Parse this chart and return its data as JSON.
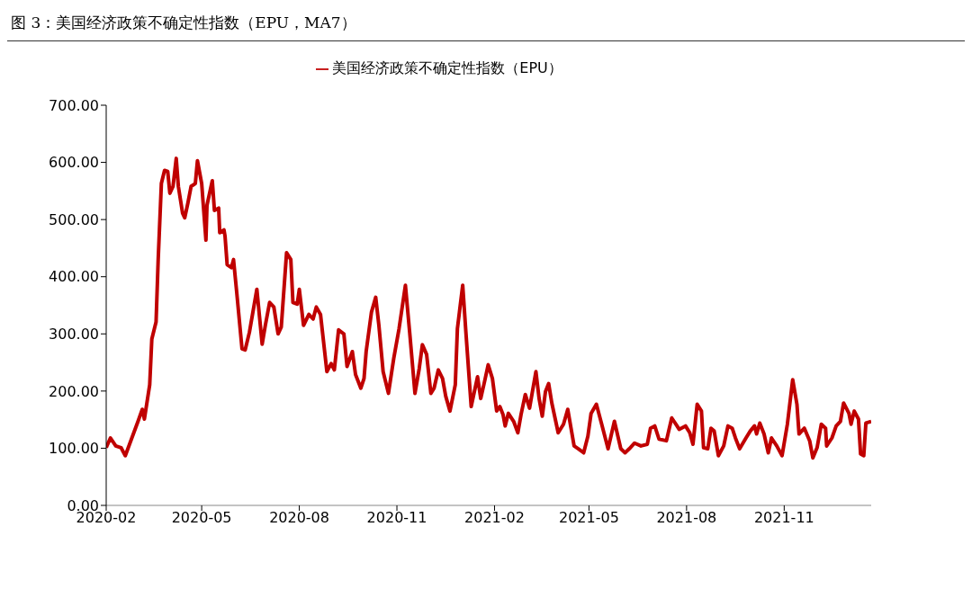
{
  "chart_data": {
    "type": "line",
    "title": "图 3：美国经济政策不确定性指数（EPU，MA7）",
    "x": [
      "2020-02-01",
      "2020-02-05",
      "2020-02-10",
      "2020-02-15",
      "2020-02-19",
      "2020-02-23",
      "2020-03-02",
      "2020-03-06",
      "2020-03-08",
      "2020-03-13",
      "2020-03-15",
      "2020-03-19",
      "2020-03-21",
      "2020-03-24",
      "2020-03-27",
      "2020-03-30",
      "2020-04-01",
      "2020-04-04",
      "2020-04-07",
      "2020-04-09",
      "2020-04-13",
      "2020-04-15",
      "2020-04-18",
      "2020-04-21",
      "2020-04-25",
      "2020-04-27",
      "2020-05-01",
      "2020-05-05",
      "2020-05-06",
      "2020-05-11",
      "2020-05-13",
      "2020-05-17",
      "2020-05-18",
      "2020-05-22",
      "2020-05-23",
      "2020-05-25",
      "2020-05-29",
      "2020-05-31",
      "2020-06-03",
      "2020-06-08",
      "2020-06-11",
      "2020-06-15",
      "2020-06-22",
      "2020-06-27",
      "2020-06-30",
      "2020-07-04",
      "2020-07-08",
      "2020-07-12",
      "2020-07-15",
      "2020-07-20",
      "2020-07-24",
      "2020-07-26",
      "2020-07-30",
      "2020-08-01",
      "2020-08-05",
      "2020-08-10",
      "2020-08-14",
      "2020-08-17",
      "2020-08-21",
      "2020-08-27",
      "2020-08-31",
      "2020-09-03",
      "2020-09-07",
      "2020-09-12",
      "2020-09-15",
      "2020-09-20",
      "2020-09-23",
      "2020-09-28",
      "2020-10-01",
      "2020-10-03",
      "2020-10-08",
      "2020-10-12",
      "2020-10-15",
      "2020-10-19",
      "2020-10-24",
      "2020-10-29",
      "2020-11-03",
      "2020-11-09",
      "2020-11-13",
      "2020-11-18",
      "2020-11-22",
      "2020-11-25",
      "2020-11-29",
      "2020-12-03",
      "2020-12-06",
      "2020-12-10",
      "2020-12-14",
      "2020-12-17",
      "2020-12-21",
      "2020-12-26",
      "2020-12-28",
      "2021-01-02",
      "2021-01-05",
      "2021-01-10",
      "2021-01-16",
      "2021-01-19",
      "2021-01-23",
      "2021-01-26",
      "2021-01-30",
      "2021-02-03",
      "2021-02-06",
      "2021-02-09",
      "2021-02-11",
      "2021-02-14",
      "2021-02-19",
      "2021-02-23",
      "2021-02-26",
      "2021-03-02",
      "2021-03-06",
      "2021-03-12",
      "2021-03-15",
      "2021-03-18",
      "2021-03-21",
      "2021-03-24",
      "2021-03-27",
      "2021-04-02",
      "2021-04-07",
      "2021-04-11",
      "2021-04-17",
      "2021-04-21",
      "2021-04-26",
      "2021-04-30",
      "2021-05-03",
      "2021-05-08",
      "2021-05-13",
      "2021-05-19",
      "2021-05-25",
      "2021-05-31",
      "2021-06-04",
      "2021-06-08",
      "2021-06-13",
      "2021-06-19",
      "2021-06-25",
      "2021-06-28",
      "2021-07-02",
      "2021-07-06",
      "2021-07-13",
      "2021-07-18",
      "2021-07-23",
      "2021-07-25",
      "2021-07-31",
      "2021-08-04",
      "2021-08-07",
      "2021-08-11",
      "2021-08-15",
      "2021-08-17",
      "2021-08-21",
      "2021-08-24",
      "2021-08-27",
      "2021-08-31",
      "2021-09-05",
      "2021-09-09",
      "2021-09-13",
      "2021-09-16",
      "2021-09-20",
      "2021-09-26",
      "2021-09-30",
      "2021-10-04",
      "2021-10-06",
      "2021-10-09",
      "2021-10-13",
      "2021-10-17",
      "2021-10-20",
      "2021-10-25",
      "2021-10-30",
      "2021-11-04",
      "2021-11-09",
      "2021-11-13",
      "2021-11-15",
      "2021-11-20",
      "2021-11-25",
      "2021-11-28",
      "2021-12-02",
      "2021-12-06",
      "2021-12-10",
      "2021-12-11",
      "2021-12-16",
      "2021-12-20",
      "2021-12-24",
      "2021-12-27",
      "2022-01-01",
      "2022-01-03",
      "2022-01-06",
      "2022-01-10",
      "2022-01-12",
      "2022-01-15",
      "2022-01-17",
      "2022-01-22"
    ],
    "series": [
      {
        "name": "美国经济政策不确定性指数（EPU）",
        "color": "#c00000",
        "values": [
          101,
          118,
          104,
          101,
          87,
          107,
          147,
          168,
          151,
          211,
          291,
          321,
          430,
          563,
          586,
          584,
          546,
          558,
          607,
          558,
          511,
          503,
          529,
          558,
          563,
          603,
          563,
          464,
          525,
          568,
          516,
          520,
          477,
          482,
          471,
          421,
          416,
          430,
          373,
          274,
          272,
          303,
          378,
          282,
          315,
          355,
          347,
          300,
          312,
          442,
          430,
          355,
          352,
          378,
          315,
          334,
          326,
          347,
          334,
          234,
          248,
          237,
          307,
          300,
          243,
          269,
          229,
          205,
          222,
          269,
          338,
          364,
          315,
          234,
          196,
          257,
          309,
          385,
          303,
          196,
          239,
          281,
          264,
          196,
          205,
          237,
          222,
          191,
          165,
          211,
          309,
          385,
          303,
          173,
          225,
          187,
          220,
          246,
          222,
          165,
          173,
          159,
          139,
          161,
          147,
          127,
          159,
          194,
          170,
          234,
          187,
          156,
          199,
          213,
          179,
          127,
          142,
          168,
          104,
          99,
          92,
          121,
          161,
          177,
          142,
          99,
          147,
          99,
          92,
          99,
          109,
          104,
          107,
          135,
          139,
          116,
          113,
          153,
          139,
          133,
          139,
          127,
          107,
          177,
          165,
          101,
          99,
          135,
          130,
          87,
          104,
          139,
          135,
          118,
          99,
          118,
          130,
          139,
          125,
          144,
          125,
          92,
          118,
          104,
          87,
          142,
          220,
          177,
          125,
          135,
          113,
          83,
          101,
          142,
          135,
          104,
          118,
          139,
          147,
          179,
          161,
          142,
          165,
          151,
          90,
          87,
          144,
          147
        ]
      }
    ],
    "xlim": [
      "2020-02-01",
      "2022-01-22"
    ],
    "xticks": [
      "2020-02",
      "2020-05",
      "2020-08",
      "2020-11",
      "2021-02",
      "2021-05",
      "2021-08",
      "2021-11"
    ],
    "ylim": [
      0,
      700
    ],
    "yticks": [
      {
        "value": 0,
        "label": "0.00"
      },
      {
        "value": 100,
        "label": "100.00"
      },
      {
        "value": 200,
        "label": "200.00"
      },
      {
        "value": 300,
        "label": "300.00"
      },
      {
        "value": 400,
        "label": "400.00"
      },
      {
        "value": 500,
        "label": "500.00"
      },
      {
        "value": 600,
        "label": "600.00"
      },
      {
        "value": 700,
        "label": "700.00"
      }
    ],
    "grid": false,
    "legend": "top",
    "marker": "none",
    "line_style": "solid"
  }
}
